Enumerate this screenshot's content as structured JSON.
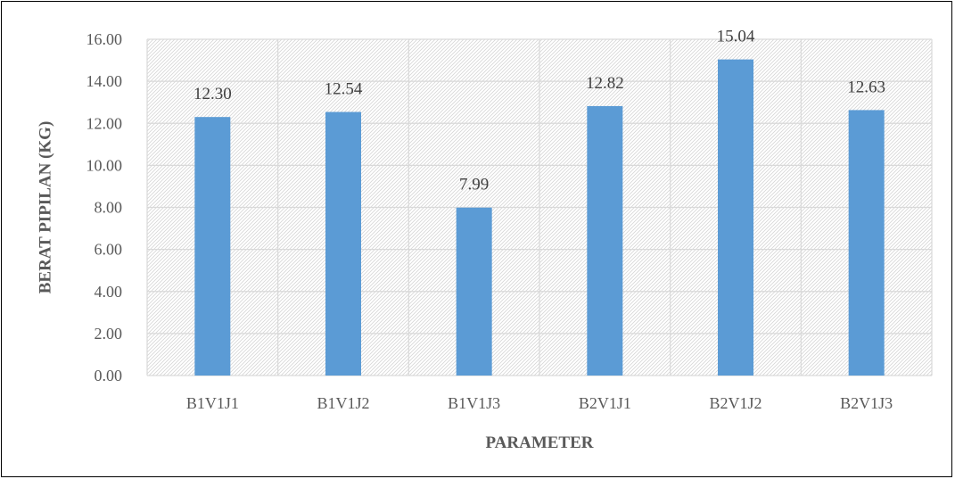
{
  "chart_data": {
    "type": "bar",
    "categories": [
      "B1V1J1",
      "B1V1J2",
      "B1V1J3",
      "B2V1J1",
      "B2V1J2",
      "B2V1J3"
    ],
    "values": [
      12.3,
      12.54,
      7.99,
      12.82,
      15.04,
      12.63
    ],
    "value_labels": [
      "12.30",
      "12.54",
      "7.99",
      "12.82",
      "15.04",
      "12.63"
    ],
    "y_ticks": [
      "0.00",
      "2.00",
      "4.00",
      "6.00",
      "8.00",
      "10.00",
      "12.00",
      "14.00",
      "16.00"
    ],
    "title": "",
    "xlabel": "PARAMETER",
    "ylabel": "BERAT PIPILAN (KG)",
    "ylim": [
      0,
      16
    ],
    "grid": true,
    "legend": "none",
    "colors": {
      "bar": "#5B9BD5",
      "grid": "#d9d9d9",
      "hatch": "#d9d9d9",
      "text": "#595959"
    }
  }
}
